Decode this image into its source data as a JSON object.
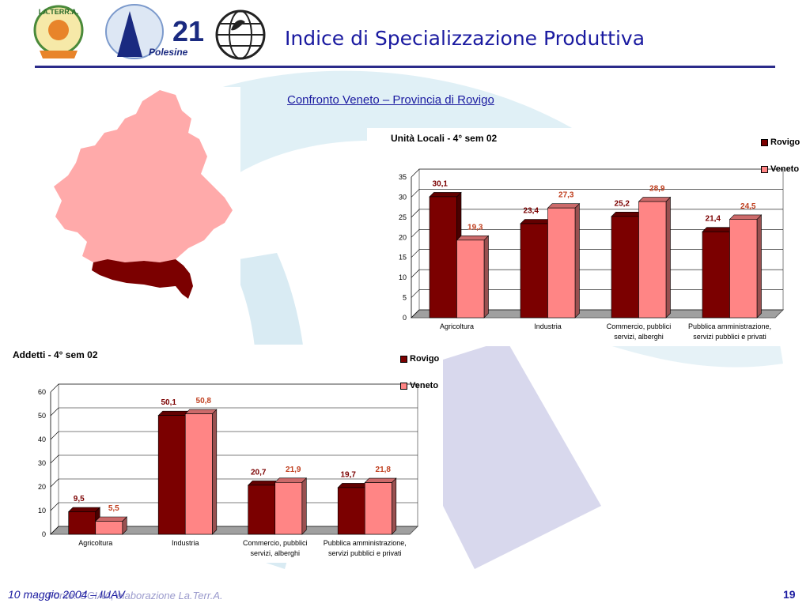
{
  "header": {
    "title": "Indice di Specializzazione Produttiva",
    "logos": [
      {
        "name": "laterra-logo",
        "text": "LA.TERR.A."
      },
      {
        "name": "a21-polesine-logo",
        "text": "21",
        "sub": "Polesine"
      },
      {
        "name": "globe-emblem-logo"
      }
    ]
  },
  "subtitle": "Confronto Veneto – Provincia di Rovigo",
  "colors": {
    "rovigo": "#7b0000",
    "veneto": "#ff8585",
    "accent": "#1a1aa0",
    "veneto_map": "#ffaaaa",
    "rovigo_map": "#7b0000"
  },
  "charts": [
    {
      "chart_data": {
        "type": "bar",
        "title": "Unità Locali - 4° sem 02",
        "categories": [
          [
            "Agricoltura"
          ],
          [
            "Industria"
          ],
          [
            "Commercio, pubblici",
            "servizi, alberghi"
          ],
          [
            "Pubblica amministrazione,",
            "servizi pubblici e privati"
          ]
        ],
        "series": [
          {
            "name": "Rovigo",
            "values": [
              30.1,
              23.4,
              25.2,
              21.4
            ],
            "labels": [
              "30,1",
              "23,4",
              "25,2",
              "21,4"
            ]
          },
          {
            "name": "Veneto",
            "values": [
              19.3,
              27.3,
              28.9,
              24.5
            ],
            "labels": [
              "19,3",
              "27,3",
              "28,9",
              "24,5"
            ]
          }
        ],
        "ylim": [
          0,
          35
        ],
        "yticks": [
          0,
          5,
          10,
          15,
          20,
          25,
          30,
          35
        ],
        "grid": true,
        "legend": "top-right"
      }
    },
    {
      "chart_data": {
        "type": "bar",
        "title": "Addetti - 4° sem 02",
        "categories": [
          [
            "Agricoltura"
          ],
          [
            "Industria"
          ],
          [
            "Commercio, pubblici",
            "servizi, alberghi"
          ],
          [
            "Pubblica amministrazione,",
            "servizi pubblici e privati"
          ]
        ],
        "series": [
          {
            "name": "Rovigo",
            "values": [
              9.5,
              50.1,
              20.7,
              19.7
            ],
            "labels": [
              "9,5",
              "50,1",
              "20,7",
              "19,7"
            ]
          },
          {
            "name": "Veneto",
            "values": [
              5.5,
              50.8,
              21.9,
              21.8
            ],
            "labels": [
              "5,5",
              "50,8",
              "21,9",
              "21,8"
            ]
          }
        ],
        "ylim": [
          0,
          60
        ],
        "yticks": [
          0,
          10,
          20,
          30,
          40,
          50,
          60
        ],
        "grid": true,
        "legend": "top-right"
      }
    }
  ],
  "footer": {
    "date": "10 maggio 2004 – IUAV",
    "source": "Fonte: CCIAA, elaborazione La.Terr.A.",
    "page": "19"
  }
}
